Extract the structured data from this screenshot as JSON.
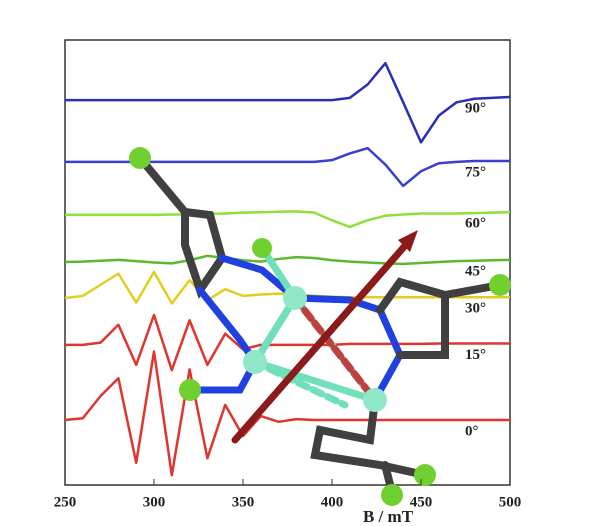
{
  "chart_data": {
    "type": "line",
    "xlabel": "B / mT",
    "xlim": [
      250,
      500
    ],
    "xticks": [
      250,
      300,
      350,
      400,
      450,
      500
    ],
    "ylim": [
      0,
      100
    ],
    "x": [
      250,
      260,
      270,
      280,
      290,
      300,
      310,
      320,
      330,
      340,
      350,
      360,
      370,
      380,
      390,
      400,
      410,
      420,
      430,
      440,
      450,
      460,
      470,
      480,
      490,
      500
    ],
    "series": [
      {
        "name": "90°",
        "color": "#2b2fb0",
        "values": [
          86.5,
          86.5,
          86.5,
          86.5,
          86.5,
          86.5,
          86.5,
          86.5,
          86.5,
          86.5,
          86.5,
          86.5,
          86.5,
          86.5,
          86.5,
          86.5,
          87,
          90,
          94.8,
          86,
          77,
          83,
          86,
          86.8,
          87,
          87.2
        ]
      },
      {
        "name": "75°",
        "color": "#3a3fd0",
        "values": [
          72.6,
          72.6,
          72.6,
          72.6,
          72.6,
          72.6,
          72.6,
          72.6,
          72.6,
          72.6,
          72.6,
          72.6,
          72.6,
          72.6,
          72.6,
          73,
          74.5,
          75.7,
          72,
          67.2,
          70.5,
          72.3,
          72.6,
          72.8,
          72.8,
          72.8
        ]
      },
      {
        "name": "60°",
        "color": "#8fe03a",
        "values": [
          60.7,
          60.7,
          60.7,
          60.7,
          60.7,
          60.7,
          60.8,
          60.8,
          60.9,
          61,
          61.2,
          61.3,
          61.4,
          61.5,
          61.2,
          59.5,
          58,
          59.5,
          60.5,
          60.8,
          61,
          61,
          61,
          61.1,
          61.2,
          61.3
        ]
      },
      {
        "name": "45°",
        "color": "#5cb82e",
        "values": [
          50.1,
          50.2,
          50.4,
          50.6,
          50.3,
          50,
          49.8,
          50.5,
          51.5,
          51,
          50.5,
          50.2,
          50.8,
          51.2,
          51,
          50.5,
          50.2,
          50,
          49.8,
          49.7,
          49.9,
          50.1,
          50.3,
          50.4,
          50.5,
          50.6
        ]
      },
      {
        "name": "30°",
        "color": "#e0cf1e",
        "values": [
          42,
          42.5,
          45,
          47.5,
          41,
          47.9,
          40.8,
          46,
          41.5,
          44,
          42.5,
          42.8,
          43,
          42.8,
          42.5,
          42.3,
          42.2,
          42.2,
          42.2,
          42.2,
          42.2,
          42.2,
          42.2,
          42.2,
          42.2,
          42.2
        ]
      },
      {
        "name": "15°",
        "color": "#e0352f",
        "values": [
          31.5,
          31.5,
          32,
          36,
          27,
          38.2,
          25.8,
          37,
          27,
          34,
          30.5,
          31.5,
          31.5,
          31.5,
          31.5,
          31.5,
          31.7,
          31.7,
          31.7,
          31.7,
          31.7,
          31.8,
          31.8,
          31.8,
          31.8,
          31.8
        ]
      },
      {
        "name": "0°",
        "color": "#e0352f",
        "values": [
          14.6,
          15,
          20,
          24,
          5,
          30,
          2.2,
          26,
          6,
          18,
          11,
          15.5,
          14.2,
          14.8,
          14.6,
          14.6,
          14.6,
          14.6,
          14.6,
          14.6,
          14.6,
          14.6,
          14.6,
          14.6,
          14.6,
          14.6
        ]
      }
    ]
  }
}
